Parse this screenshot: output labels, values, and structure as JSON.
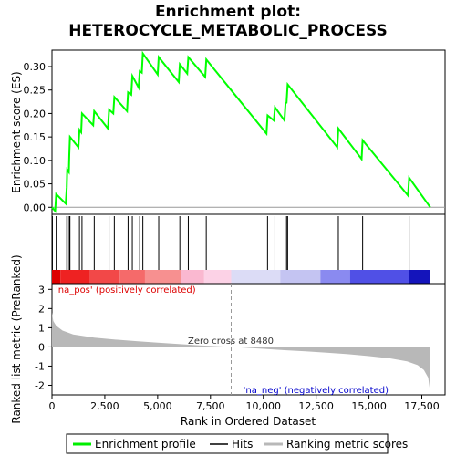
{
  "chart_data": {
    "type": "line",
    "title_line1": "Enrichment plot:",
    "title_line2": "HETEROCYCLE_METABOLIC_PROCESS",
    "top_panel": {
      "ylabel": "Enrichment score (ES)",
      "ylim": [
        -0.015,
        0.335
      ],
      "yticks": [
        0.0,
        0.05,
        0.1,
        0.15,
        0.2,
        0.25,
        0.3
      ],
      "ytick_labels": [
        "0.00",
        "0.05",
        "0.10",
        "0.15",
        "0.20",
        "0.25",
        "0.30"
      ],
      "series_name": "Enrichment profile",
      "color": "#00ff00",
      "points": [
        [
          0,
          0
        ],
        [
          150,
          -0.008
        ],
        [
          200,
          0.028
        ],
        [
          650,
          0.008
        ],
        [
          700,
          0.042
        ],
        [
          720,
          0.08
        ],
        [
          800,
          0.075
        ],
        [
          820,
          0.113
        ],
        [
          850,
          0.15
        ],
        [
          1250,
          0.128
        ],
        [
          1300,
          0.165
        ],
        [
          1380,
          0.16
        ],
        [
          1420,
          0.2
        ],
        [
          1950,
          0.175
        ],
        [
          2000,
          0.205
        ],
        [
          2650,
          0.168
        ],
        [
          2700,
          0.208
        ],
        [
          2900,
          0.2
        ],
        [
          2950,
          0.235
        ],
        [
          3550,
          0.205
        ],
        [
          3600,
          0.245
        ],
        [
          3750,
          0.24
        ],
        [
          3800,
          0.28
        ],
        [
          4100,
          0.255
        ],
        [
          4150,
          0.29
        ],
        [
          4250,
          0.287
        ],
        [
          4300,
          0.328
        ],
        [
          5000,
          0.283
        ],
        [
          5050,
          0.32
        ],
        [
          6000,
          0.267
        ],
        [
          6050,
          0.305
        ],
        [
          6400,
          0.285
        ],
        [
          6450,
          0.32
        ],
        [
          7250,
          0.278
        ],
        [
          7300,
          0.315
        ],
        [
          10150,
          0.157
        ],
        [
          10200,
          0.196
        ],
        [
          10500,
          0.185
        ],
        [
          10550,
          0.213
        ],
        [
          11000,
          0.185
        ],
        [
          11050,
          0.222
        ],
        [
          11100,
          0.223
        ],
        [
          11150,
          0.262
        ],
        [
          13500,
          0.128
        ],
        [
          13550,
          0.168
        ],
        [
          14650,
          0.103
        ],
        [
          14700,
          0.143
        ],
        [
          16850,
          0.025
        ],
        [
          16900,
          0.063
        ],
        [
          17900,
          0.0
        ]
      ]
    },
    "hits": [
      20,
      200,
      700,
      720,
      820,
      850,
      1300,
      1420,
      2000,
      2700,
      2950,
      3600,
      3800,
      4150,
      4300,
      5050,
      6050,
      6450,
      7300,
      10200,
      10550,
      11100,
      11150,
      13550,
      14700,
      16900
    ],
    "x_axis": {
      "label": "Rank in Ordered Dataset",
      "xlim": [
        0,
        18600
      ],
      "xticks": [
        0,
        2500,
        5000,
        7500,
        10000,
        12500,
        15000,
        17500
      ],
      "xtick_labels": [
        "0",
        "2,500",
        "5,000",
        "7,500",
        "10,000",
        "12,500",
        "15,000",
        "17,500"
      ]
    },
    "color_bar": {
      "segments": [
        {
          "from": 0,
          "to": 400,
          "color": "#dd0000"
        },
        {
          "from": 400,
          "to": 1800,
          "color": "#ee2222"
        },
        {
          "from": 1800,
          "to": 3200,
          "color": "#f24848"
        },
        {
          "from": 3200,
          "to": 4400,
          "color": "#f56a6a"
        },
        {
          "from": 4400,
          "to": 6100,
          "color": "#f79090"
        },
        {
          "from": 6100,
          "to": 7200,
          "color": "#fab8d0"
        },
        {
          "from": 7200,
          "to": 8480,
          "color": "#fcd2e6"
        },
        {
          "from": 8480,
          "to": 10800,
          "color": "#dcdcf6"
        },
        {
          "from": 10800,
          "to": 12700,
          "color": "#c4c4f2"
        },
        {
          "from": 12700,
          "to": 14100,
          "color": "#8a8af0"
        },
        {
          "from": 14100,
          "to": 16900,
          "color": "#5050e6"
        },
        {
          "from": 16900,
          "to": 17900,
          "color": "#1414bb"
        }
      ]
    },
    "bottom_panel": {
      "ylabel": "Ranked list metric (PreRanked)",
      "ylim": [
        -2.5,
        3.3
      ],
      "yticks": [
        -2,
        -1,
        0,
        1,
        2,
        3
      ],
      "ytick_labels": [
        "-2",
        "-1",
        "0",
        "1",
        "2",
        "3"
      ],
      "metric_points": [
        [
          0,
          1.8
        ],
        [
          60,
          1.35
        ],
        [
          200,
          1.1
        ],
        [
          500,
          0.85
        ],
        [
          1000,
          0.65
        ],
        [
          2000,
          0.48
        ],
        [
          3000,
          0.38
        ],
        [
          4000,
          0.3
        ],
        [
          5000,
          0.22
        ],
        [
          6000,
          0.15
        ],
        [
          7000,
          0.08
        ],
        [
          8480,
          0.0
        ],
        [
          10000,
          -0.1
        ],
        [
          11000,
          -0.17
        ],
        [
          12000,
          -0.23
        ],
        [
          13000,
          -0.3
        ],
        [
          14000,
          -0.38
        ],
        [
          15000,
          -0.48
        ],
        [
          16000,
          -0.6
        ],
        [
          16800,
          -0.75
        ],
        [
          17300,
          -0.95
        ],
        [
          17600,
          -1.2
        ],
        [
          17800,
          -1.6
        ],
        [
          17900,
          -2.4
        ]
      ],
      "fill_color": "#b8b8b8",
      "zero_cross_label": "Zero cross at 8480",
      "zero_cross": 8480,
      "pos_label": "'na_pos' (positively correlated)",
      "neg_label": "'na_neg' (negatively correlated)",
      "pos_color": "#dd0000",
      "neg_color": "#0000cc"
    },
    "legend": {
      "items": [
        {
          "label": "Enrichment profile",
          "color": "#00ff00"
        },
        {
          "label": "Hits",
          "color": "#000000"
        },
        {
          "label": "Ranking metric scores",
          "color": "#b8b8b8"
        }
      ]
    }
  }
}
